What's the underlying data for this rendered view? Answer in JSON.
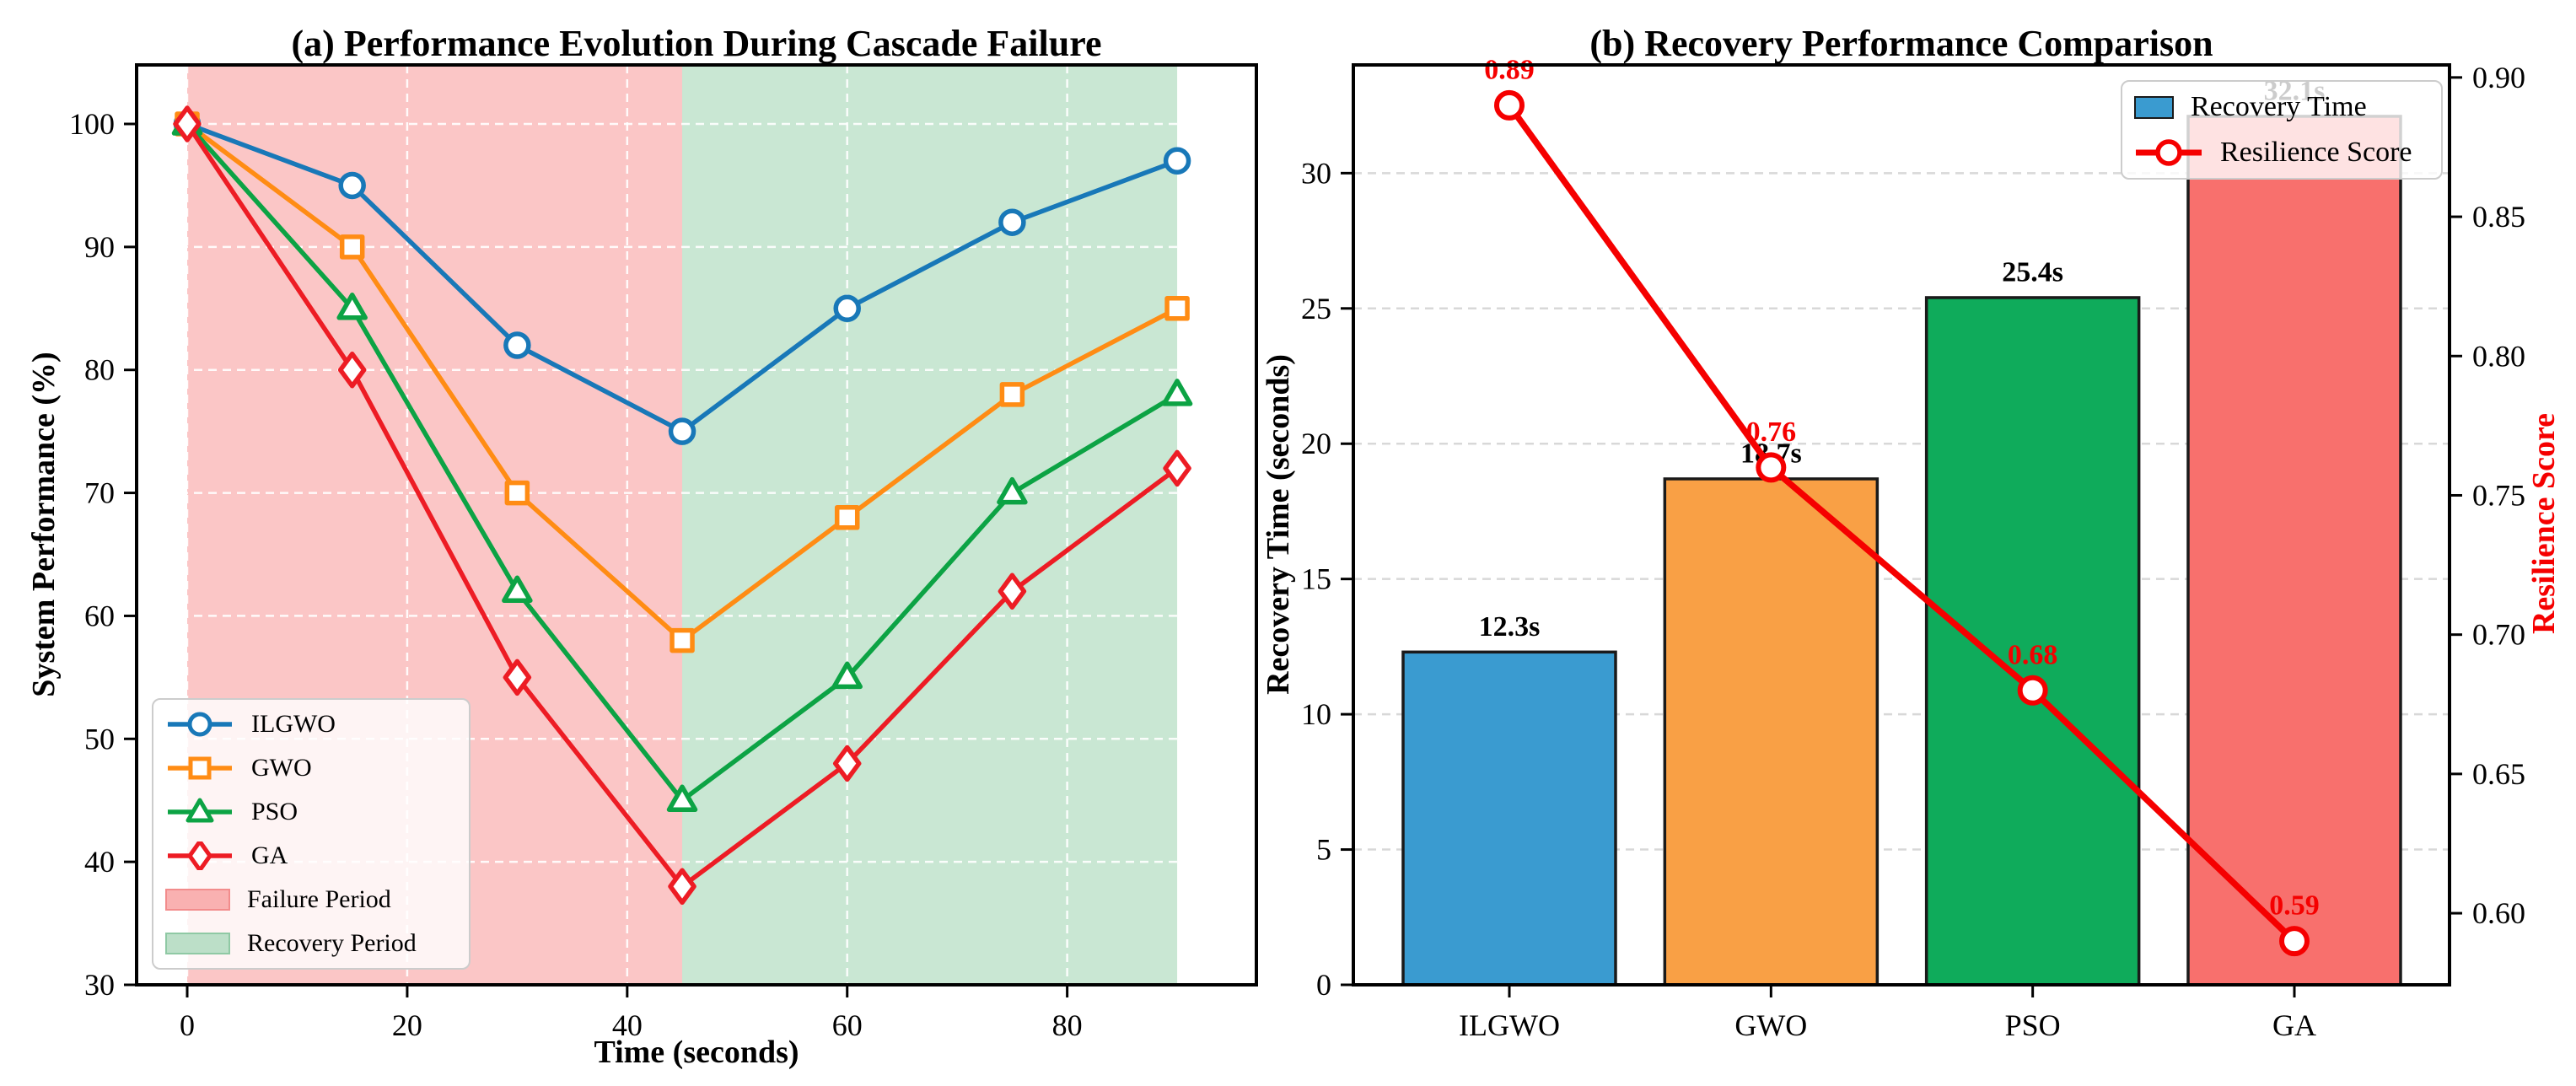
{
  "figure_background": "#ffffff",
  "chart_data": [
    {
      "type": "line",
      "title": "(a) Performance Evolution During Cascade Failure",
      "xlabel": "Time (seconds)",
      "ylabel": "System Performance (%)",
      "x": [
        0,
        15,
        30,
        45,
        60,
        75,
        90
      ],
      "xlim": [
        -4.6,
        97.2
      ],
      "ylim": [
        30,
        104.8
      ],
      "xticks": [
        0,
        20,
        40,
        60,
        80
      ],
      "xtick_labels": [
        "0",
        "20",
        "40",
        "60",
        "80"
      ],
      "yticks": [
        30,
        40,
        50,
        60,
        70,
        80,
        90,
        100
      ],
      "ytick_labels": [
        "30",
        "40",
        "50",
        "60",
        "70",
        "80",
        "90",
        "100"
      ],
      "grid": "dashed",
      "legend_position": "lower left",
      "series": [
        {
          "name": "ILGWO",
          "marker": "circle",
          "color": "#1878b8",
          "values": [
            100,
            95,
            82,
            75,
            85,
            92,
            97
          ]
        },
        {
          "name": "GWO",
          "marker": "square",
          "color": "#ff8c14",
          "values": [
            100,
            90,
            70,
            58,
            68,
            78,
            85
          ]
        },
        {
          "name": "PSO",
          "marker": "triangle",
          "color": "#0ca344",
          "values": [
            100,
            85,
            62,
            45,
            55,
            70,
            78
          ]
        },
        {
          "name": "GA",
          "marker": "diamond",
          "color": "#ed1c24",
          "values": [
            100,
            80,
            55,
            38,
            48,
            62,
            72
          ]
        }
      ],
      "spans": [
        {
          "name": "Failure Period",
          "from": 0,
          "to": 45,
          "fill": "rgba(244,100,100,0.37)",
          "swatch_fill": "#f9b1b1",
          "swatch_border": "#f28c8c"
        },
        {
          "name": "Recovery Period",
          "from": 45,
          "to": 90,
          "fill": "rgba(40,160,80,0.25)",
          "swatch_fill": "#bcdfc8",
          "swatch_border": "#8fc9a4"
        }
      ]
    },
    {
      "type": "bar+line",
      "title": "(b) Recovery Performance Comparison",
      "ylabel_left": "Recovery Time (seconds)",
      "ylabel_right": "Resilience Score",
      "categories": [
        "ILGWO",
        "GWO",
        "PSO",
        "GA"
      ],
      "bars": {
        "name": "Recovery Time",
        "values": [
          12.3,
          18.7,
          25.4,
          32.1
        ],
        "labels": [
          "12.3s",
          "18.7s",
          "25.4s",
          "32.1s"
        ],
        "colors": [
          "#3a9bd0",
          "#f9a045",
          "#0fab5b",
          "#f8706d"
        ],
        "edge_color": "#1a1a1a"
      },
      "line": {
        "name": "Resilience Score",
        "values": [
          0.89,
          0.76,
          0.68,
          0.59
        ],
        "labels": [
          "0.89",
          "0.76",
          "0.68",
          "0.59"
        ],
        "color": "#f50000"
      },
      "ylim_left": [
        0,
        34
      ],
      "ylim_right": [
        0.5743,
        0.9045
      ],
      "yticks_left": [
        0,
        5,
        10,
        15,
        20,
        25,
        30
      ],
      "ytick_labels_left": [
        "0",
        "5",
        "10",
        "15",
        "20",
        "25",
        "30"
      ],
      "yticks_right": [
        0.6,
        0.65,
        0.7,
        0.75,
        0.8,
        0.85,
        0.9
      ],
      "ytick_labels_right": [
        "0.60",
        "0.65",
        "0.70",
        "0.75",
        "0.80",
        "0.85",
        "0.90"
      ],
      "grid": "dashed horizontal",
      "legend_position": "upper right"
    }
  ],
  "accent_colors": {
    "frame": "#000000",
    "grid_panel_a": "rgba(255,255,255,0.9)",
    "grid_panel_b": "#d8d8d8",
    "resilience_text": "#f50000"
  }
}
